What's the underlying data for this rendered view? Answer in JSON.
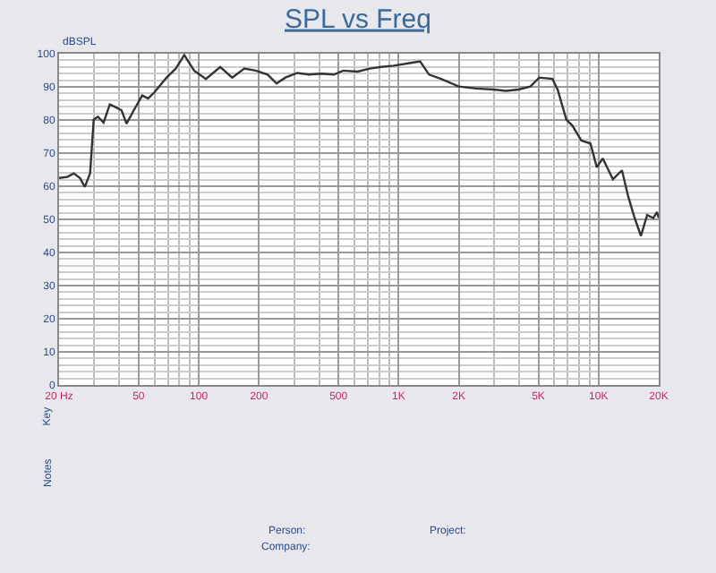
{
  "chart_data": {
    "type": "line",
    "title": "SPL vs Freq",
    "ylabel": "dBSPL",
    "x": [
      20,
      22,
      23.7,
      25.5,
      26.9,
      28.6,
      29.8,
      31.3,
      33.4,
      35.9,
      38.5,
      41.1,
      43.5,
      47.3,
      52.1,
      55.8,
      59.9,
      69,
      76.7,
      84.6,
      94.8,
      108.6,
      128,
      147,
      169,
      193,
      221,
      245,
      271,
      311,
      356,
      411,
      474,
      528,
      623,
      715,
      817,
      943,
      1170,
      1280,
      1420,
      1630,
      2000,
      2440,
      2990,
      3440,
      3980,
      4560,
      5050,
      5880,
      6240,
      6900,
      7400,
      8200,
      9110,
      9800,
      10500,
      11800,
      13100,
      14100,
      15160,
      16300,
      17500,
      18800,
      19600,
      20000
    ],
    "series": [
      {
        "color": "#333333",
        "values": [
          62.5,
          62.8,
          63.9,
          62.4,
          59.8,
          63.9,
          80.1,
          81,
          79.2,
          84.7,
          83.8,
          82.9,
          78.9,
          82.9,
          87.4,
          86.5,
          88.3,
          92.8,
          95.5,
          99.6,
          94.9,
          92.4,
          96,
          92.8,
          95.5,
          94.9,
          93.7,
          91,
          92.8,
          94.2,
          93.7,
          94,
          93.7,
          94.9,
          94.6,
          95.5,
          96,
          96.4,
          97.3,
          97.7,
          93.7,
          92.4,
          90.1,
          89.5,
          89.2,
          88.8,
          89.2,
          90.1,
          92.8,
          92.4,
          89.2,
          80.1,
          78.3,
          73.8,
          72.9,
          65.7,
          68.4,
          62.1,
          64.8,
          56.7,
          50.4,
          45,
          51.3,
          50.4,
          52.2,
          50.4
        ]
      }
    ],
    "log": "x",
    "xlim": [
      20,
      20000
    ],
    "xticks": [
      {
        "value": 20,
        "label": "20 Hz"
      },
      50,
      100,
      200,
      500,
      {
        "value": 1000,
        "label": "1K"
      },
      {
        "value": 2000,
        "label": "2K"
      },
      {
        "value": 5000,
        "label": "5K"
      },
      {
        "value": 10000,
        "label": "10K"
      },
      {
        "value": 20000,
        "label": "20K"
      }
    ],
    "ylim": [
      0,
      100
    ],
    "yticks": [
      0,
      10,
      20,
      30,
      40,
      50,
      60,
      70,
      80,
      90,
      100
    ],
    "grid": true,
    "line_style": "solid",
    "marker": "none",
    "annotations": [
      "Key",
      "Notes",
      "Person:",
      "Company:",
      "Project:"
    ]
  }
}
